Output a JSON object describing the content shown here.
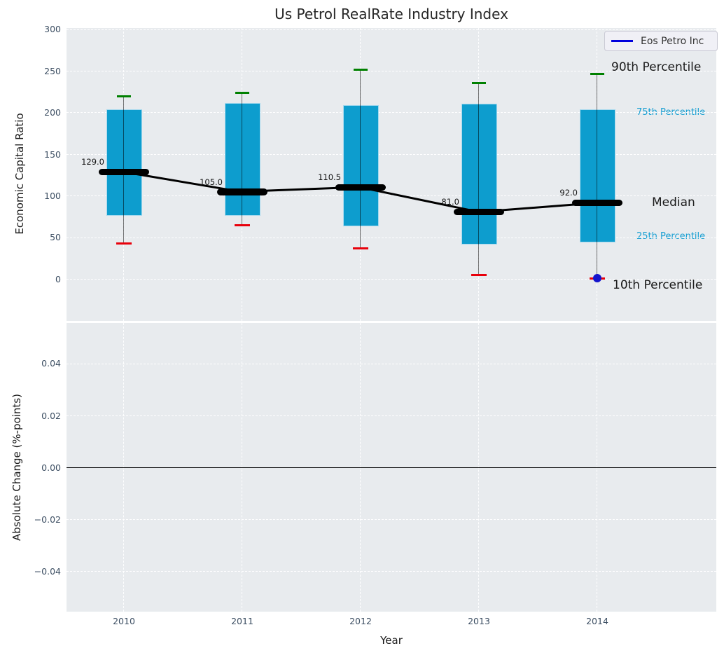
{
  "title": "Us Petrol RealRate Industry Index",
  "legend": {
    "series_label": "Eos Petro Inc"
  },
  "annotations": {
    "p90": "90th Percentile",
    "p75": "75th Percentile",
    "median": "Median",
    "p25": "25th Percentile",
    "p10": "10th Percentile"
  },
  "colors": {
    "axes_bg": "#e8ebee",
    "box_fill": "#0d9dce",
    "box_edge": "#a6d9ee",
    "cap_90": "#008000",
    "cap_10": "#e8000b",
    "median_line": "#000000",
    "eos_dot": "#1414cc",
    "legend_line": "#0000dd",
    "percentile_text_blue": "#179fd2",
    "tick_text": "#3d4f63",
    "grid": "#ffffff"
  },
  "chart_data": [
    {
      "type": "box",
      "title": "Us Petrol RealRate Industry Index",
      "ylabel": "Economic Capital Ratio",
      "categories": [
        2010,
        2011,
        2012,
        2013,
        2014
      ],
      "ylim": [
        -50,
        302
      ],
      "grid": true,
      "yticks": [
        {
          "label": "300",
          "value": 300
        },
        {
          "label": "250",
          "value": 250
        },
        {
          "label": "200",
          "value": 200
        },
        {
          "label": "150",
          "value": 150
        },
        {
          "label": "100",
          "value": 100
        },
        {
          "label": "50",
          "value": 50
        },
        {
          "label": "0",
          "value": 0
        }
      ],
      "series": [
        {
          "name": "90th Percentile",
          "values": [
            220,
            224,
            252,
            236,
            247
          ]
        },
        {
          "name": "75th Percentile",
          "values": [
            204,
            212,
            209,
            211,
            204
          ]
        },
        {
          "name": "Median",
          "values": [
            129,
            105,
            110.5,
            81,
            92
          ]
        },
        {
          "name": "25th Percentile",
          "values": [
            76,
            76,
            64,
            42,
            44
          ]
        },
        {
          "name": "10th Percentile",
          "values": [
            43,
            65,
            37,
            5,
            1
          ]
        }
      ],
      "median_labels": [
        "129.0",
        "105.0",
        "110.5",
        "81.0",
        "92.0"
      ],
      "eos_petro_inc_point": {
        "x": 2014,
        "y": 1
      },
      "legend_position": "upper right"
    },
    {
      "type": "line",
      "xlabel": "Year",
      "ylabel": "Absolute Change (%-points)",
      "x": [
        2010,
        2011,
        2012,
        2013,
        2014
      ],
      "xtick_labels": [
        "2010",
        "2011",
        "2012",
        "2013",
        "2014"
      ],
      "ylim": [
        -0.0555,
        0.0558
      ],
      "grid": true,
      "yticks": [
        {
          "label": "0.04",
          "value": 0.04
        },
        {
          "label": "0.02",
          "value": 0.02
        },
        {
          "label": "0.00",
          "value": 0.0
        },
        {
          "label": "−0.02",
          "value": -0.02
        },
        {
          "label": "−0.04",
          "value": -0.04
        }
      ],
      "zero_line": 0.0,
      "series": []
    }
  ]
}
